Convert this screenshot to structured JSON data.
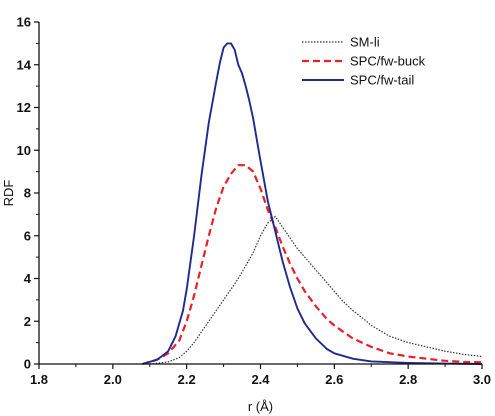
{
  "chart_data": {
    "type": "line",
    "title": "",
    "xlabel": "r (Å)",
    "ylabel": "RDF",
    "xlim": [
      1.8,
      3.0
    ],
    "ylim": [
      0,
      16
    ],
    "xticks": [
      "1.8",
      "2.0",
      "2.2",
      "2.4",
      "2.6",
      "2.8",
      "3.0"
    ],
    "yticks": [
      "0",
      "2",
      "4",
      "6",
      "8",
      "10",
      "12",
      "14",
      "16"
    ],
    "grid": false,
    "legend_position": "top-right",
    "series": [
      {
        "name": "SM-li",
        "color": "#333333",
        "style": "dotted",
        "x": [
          2.1,
          2.15,
          2.18,
          2.2,
          2.22,
          2.24,
          2.26,
          2.28,
          2.3,
          2.32,
          2.34,
          2.36,
          2.38,
          2.4,
          2.42,
          2.44,
          2.46,
          2.48,
          2.5,
          2.52,
          2.54,
          2.56,
          2.58,
          2.6,
          2.62,
          2.65,
          2.68,
          2.7,
          2.75,
          2.8,
          2.85,
          2.9,
          2.95,
          3.0
        ],
        "y": [
          0.0,
          0.1,
          0.3,
          0.6,
          1.0,
          1.5,
          2.0,
          2.5,
          3.0,
          3.5,
          4.0,
          4.6,
          5.2,
          6.0,
          6.6,
          6.9,
          6.4,
          5.9,
          5.4,
          5.0,
          4.6,
          4.2,
          3.8,
          3.4,
          3.0,
          2.5,
          2.1,
          1.8,
          1.3,
          1.0,
          0.8,
          0.6,
          0.45,
          0.35
        ]
      },
      {
        "name": "SPC/fw-buck",
        "color": "#e8202a",
        "style": "dashed",
        "x": [
          2.08,
          2.12,
          2.15,
          2.18,
          2.2,
          2.22,
          2.24,
          2.26,
          2.28,
          2.3,
          2.32,
          2.34,
          2.36,
          2.38,
          2.4,
          2.42,
          2.44,
          2.46,
          2.48,
          2.5,
          2.52,
          2.55,
          2.58,
          2.6,
          2.65,
          2.7,
          2.75,
          2.8,
          2.85,
          2.9,
          2.95,
          3.0
        ],
        "y": [
          0.0,
          0.2,
          0.5,
          1.1,
          2.0,
          3.2,
          4.6,
          6.0,
          7.3,
          8.3,
          8.9,
          9.3,
          9.3,
          9.0,
          8.2,
          7.2,
          6.4,
          5.5,
          4.7,
          4.0,
          3.4,
          2.7,
          2.1,
          1.8,
          1.2,
          0.8,
          0.5,
          0.35,
          0.25,
          0.15,
          0.1,
          0.08
        ]
      },
      {
        "name": "SPC/fw-tail",
        "color": "#1f2a8c",
        "style": "solid",
        "x": [
          2.08,
          2.12,
          2.15,
          2.17,
          2.19,
          2.2,
          2.22,
          2.24,
          2.26,
          2.28,
          2.29,
          2.3,
          2.31,
          2.32,
          2.33,
          2.34,
          2.35,
          2.36,
          2.37,
          2.38,
          2.4,
          2.42,
          2.44,
          2.46,
          2.48,
          2.5,
          2.52,
          2.55,
          2.58,
          2.6,
          2.65,
          2.7,
          2.8,
          2.9,
          3.0
        ],
        "y": [
          0.0,
          0.2,
          0.6,
          1.3,
          2.5,
          3.5,
          6.0,
          8.8,
          11.3,
          13.2,
          14.1,
          14.8,
          15.0,
          15.0,
          14.7,
          14.0,
          13.6,
          13.0,
          12.3,
          11.5,
          9.5,
          7.6,
          6.2,
          4.8,
          3.6,
          2.6,
          1.9,
          1.2,
          0.7,
          0.5,
          0.25,
          0.12,
          0.05,
          0.02,
          0.0
        ]
      }
    ]
  }
}
